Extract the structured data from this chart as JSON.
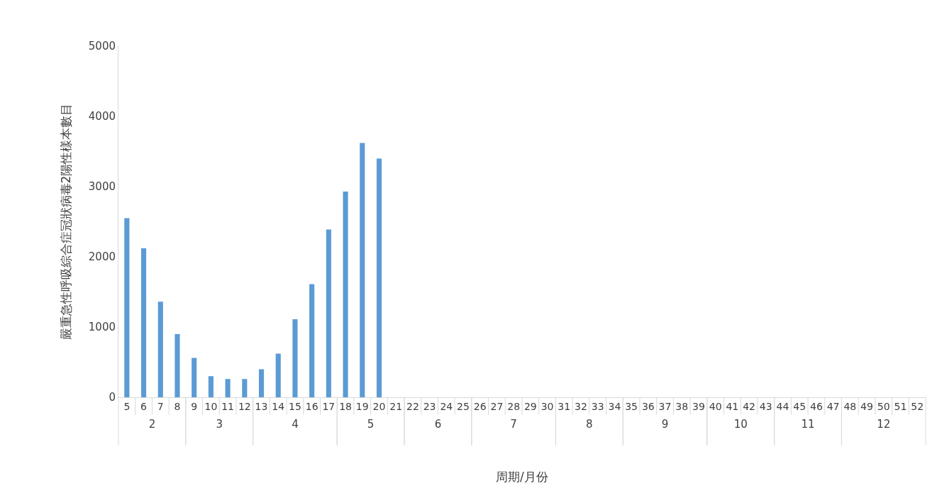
{
  "chart_data": [
    {
      "type": "bar",
      "xlabel": "2",
      "ylabel": "嚴重急性呼吸綜合症冠狀病毒2陽性樣本數目",
      "annotations": [
        "周期/月份"
      ],
      "categories": [
        "5",
        "6",
        "7",
        "8"
      ],
      "values": [
        2550,
        2120,
        1360,
        900
      ],
      "color": "#5b9bd5",
      "ylim": [
        0,
        5000
      ],
      "yticks": [
        0,
        1000,
        2000,
        3000,
        4000,
        5000
      ]
    },
    {
      "type": "bar",
      "xlabel": "3",
      "categories": [
        "9",
        "10",
        "11",
        "12"
      ],
      "values": [
        560,
        300,
        260,
        260
      ],
      "color": "#5b9bd5",
      "ylim": [
        0,
        5000
      ],
      "yticks": [
        0,
        1000,
        2000,
        3000,
        4000,
        5000
      ],
      "tick_labels": "x"
    },
    {
      "type": "bar",
      "xlabel": "4",
      "categories": [
        "13",
        "14",
        "15",
        "16",
        "17"
      ],
      "values": [
        400,
        620,
        1110,
        1610,
        2390
      ],
      "color": "#5b9bd5",
      "ylim": [
        0,
        5000
      ],
      "yticks": [
        0,
        1000,
        2000,
        3000,
        4000,
        5000
      ],
      "tick_labels": "x"
    },
    {
      "type": "bar",
      "xlabel": "5",
      "categories": [
        "18",
        "19",
        "20",
        "21"
      ],
      "values": [
        2930,
        3620,
        3400,
        null
      ],
      "color": "#5b9bd5",
      "ylim": [
        0,
        5000
      ],
      "yticks": [
        0,
        1000,
        2000,
        3000,
        4000,
        5000
      ],
      "tick_labels": "x"
    },
    {
      "type": "bar",
      "xlabel": "6",
      "categories": [
        "22",
        "23",
        "24",
        "25"
      ],
      "values": [
        null,
        null,
        null,
        null
      ],
      "color": "#5b9bd5",
      "ylim": [
        0,
        5000
      ],
      "yticks": [
        0,
        1000,
        2000,
        3000,
        4000,
        5000
      ],
      "tick_labels": "x"
    },
    {
      "type": "bar",
      "xlabel": "7",
      "categories": [
        "26",
        "27",
        "28",
        "29",
        "30"
      ],
      "values": [
        null,
        null,
        null,
        null,
        null
      ],
      "color": "#5b9bd5",
      "ylim": [
        0,
        5000
      ],
      "yticks": [
        0,
        1000,
        2000,
        3000,
        4000,
        5000
      ],
      "tick_labels": "x"
    },
    {
      "type": "bar",
      "xlabel": "8",
      "categories": [
        "31",
        "32",
        "33",
        "34"
      ],
      "values": [
        null,
        null,
        null,
        null
      ],
      "color": "#5b9bd5",
      "ylim": [
        0,
        5000
      ],
      "yticks": [
        0,
        1000,
        2000,
        3000,
        4000,
        5000
      ],
      "tick_labels": "x"
    },
    {
      "type": "bar",
      "xlabel": "9",
      "categories": [
        "35",
        "36",
        "37",
        "38",
        "39"
      ],
      "values": [
        null,
        null,
        null,
        null,
        null
      ],
      "color": "#5b9bd5",
      "ylim": [
        0,
        5000
      ],
      "yticks": [
        0,
        1000,
        2000,
        3000,
        4000,
        5000
      ],
      "tick_labels": "x"
    },
    {
      "type": "bar",
      "xlabel": "10",
      "categories": [
        "40",
        "41",
        "42",
        "43"
      ],
      "values": [
        null,
        null,
        null,
        null
      ],
      "color": "#5b9bd5",
      "ylim": [
        0,
        5000
      ],
      "yticks": [
        0,
        1000,
        2000,
        3000,
        4000,
        5000
      ],
      "tick_labels": "x"
    },
    {
      "type": "bar",
      "xlabel": "11",
      "categories": [
        "44",
        "45",
        "46",
        "47"
      ],
      "values": [
        null,
        null,
        null,
        null
      ],
      "color": "#5b9bd5",
      "ylim": [
        0,
        5000
      ],
      "yticks": [
        0,
        1000,
        2000,
        3000,
        4000,
        5000
      ],
      "tick_labels": "x"
    },
    {
      "type": "bar",
      "xlabel": "12",
      "categories": [
        "48",
        "49",
        "50",
        "51",
        "52"
      ],
      "values": [
        null,
        null,
        null,
        null,
        null
      ],
      "color": "#5b9bd5",
      "ylim": [
        0,
        5000
      ],
      "yticks": [
        0,
        1000,
        2000,
        3000,
        4000,
        5000
      ],
      "tick_labels": "x"
    }
  ]
}
